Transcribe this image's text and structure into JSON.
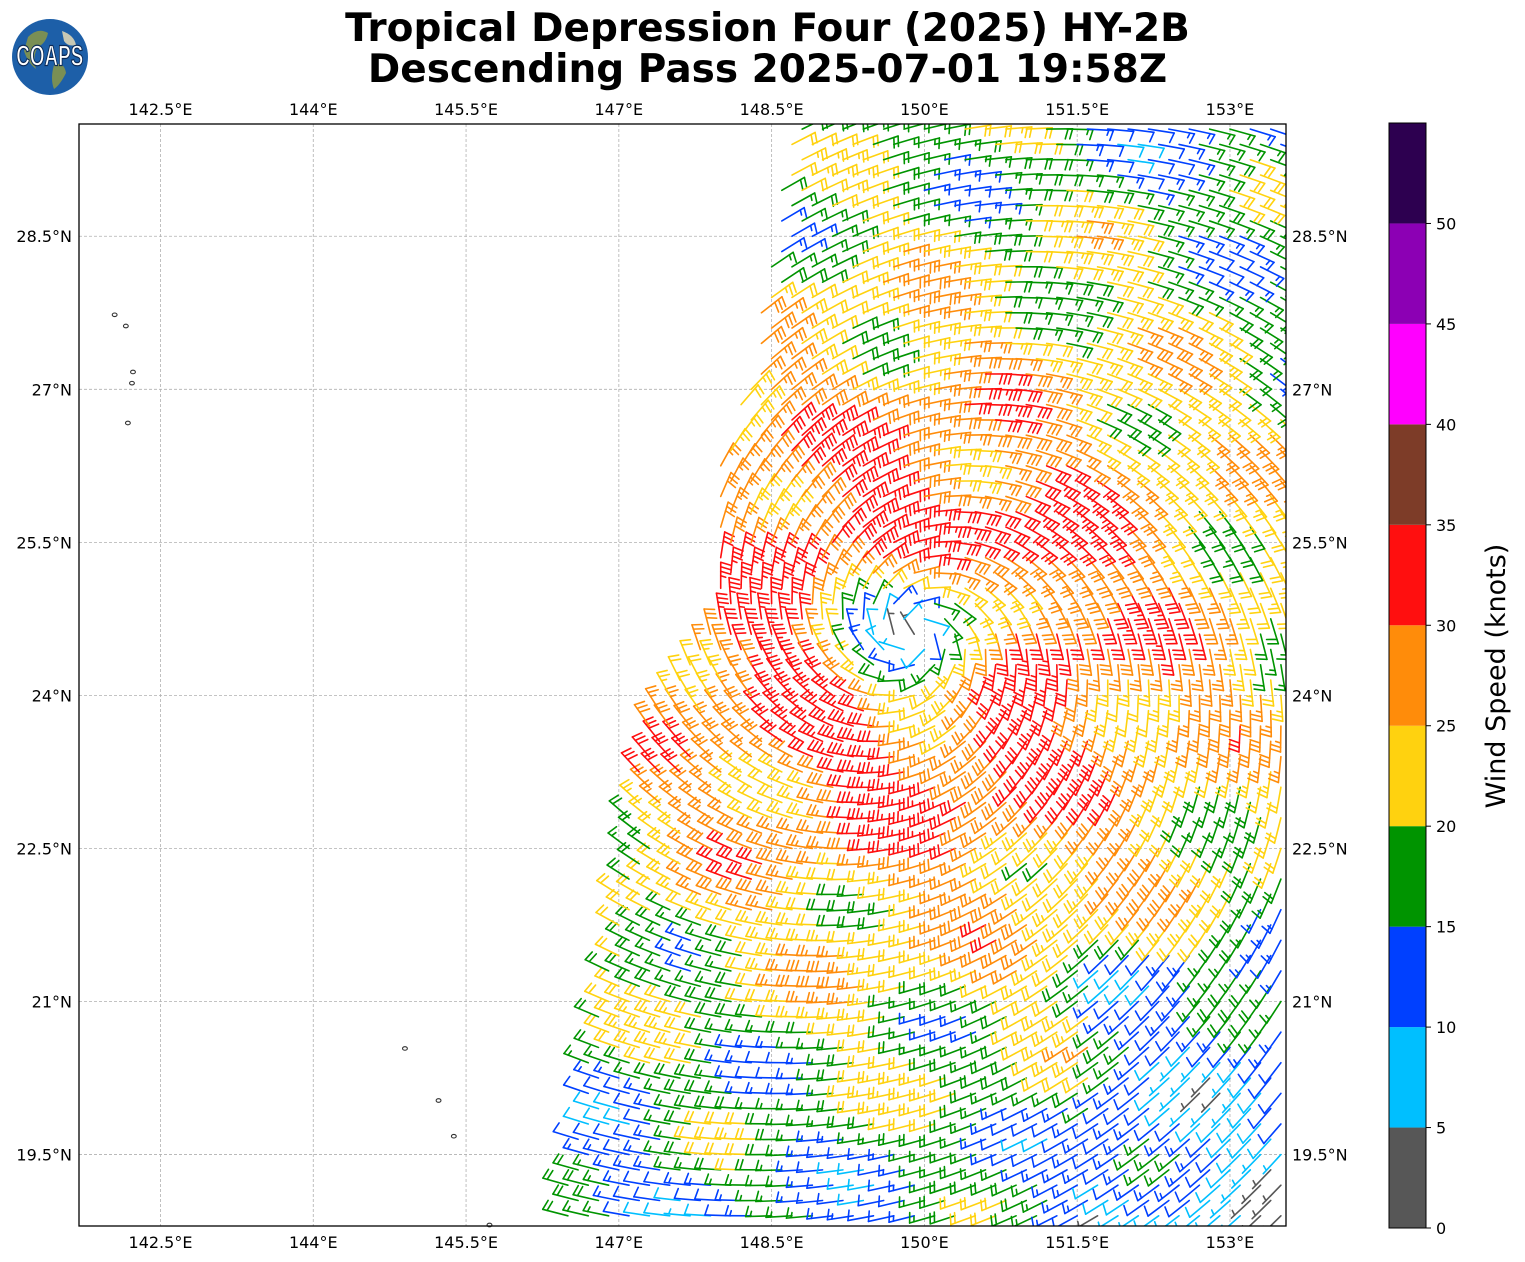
{
  "title": {
    "line1": "Tropical Depression Four (2025) HY-2B",
    "line2": "Descending Pass 2025-07-01 19:58Z"
  },
  "logo": {
    "text": "COAPS",
    "icon": "globe-logo-icon"
  },
  "map": {
    "lon_range": [
      141.7,
      153.55
    ],
    "lat_range": [
      18.8,
      29.6
    ],
    "lon_ticks": [
      {
        "value": 142.5,
        "label": "142.5°E"
      },
      {
        "value": 144.0,
        "label": "144°E"
      },
      {
        "value": 145.5,
        "label": "145.5°E"
      },
      {
        "value": 147.0,
        "label": "147°E"
      },
      {
        "value": 148.5,
        "label": "148.5°E"
      },
      {
        "value": 150.0,
        "label": "150°E"
      },
      {
        "value": 151.5,
        "label": "151.5°E"
      },
      {
        "value": 153.0,
        "label": "153°E"
      }
    ],
    "lat_ticks": [
      {
        "value": 28.5,
        "label": "28.5°N"
      },
      {
        "value": 27.0,
        "label": "27°N"
      },
      {
        "value": 25.5,
        "label": "25.5°N"
      },
      {
        "value": 24.0,
        "label": "24°N"
      },
      {
        "value": 22.5,
        "label": "22.5°N"
      },
      {
        "value": 21.0,
        "label": "21°N"
      },
      {
        "value": 19.5,
        "label": "19.5°N"
      }
    ],
    "grid": true,
    "islands": [
      {
        "lon": 142.05,
        "lat": 27.73
      },
      {
        "lon": 142.16,
        "lat": 27.62
      },
      {
        "lon": 142.23,
        "lat": 27.17
      },
      {
        "lon": 142.22,
        "lat": 27.06
      },
      {
        "lon": 142.18,
        "lat": 26.67
      },
      {
        "lon": 144.9,
        "lat": 20.54
      },
      {
        "lon": 145.23,
        "lat": 20.03
      },
      {
        "lon": 145.38,
        "lat": 19.68
      },
      {
        "lon": 145.73,
        "lat": 18.81
      }
    ]
  },
  "colorbar": {
    "label": "Wind Speed (knots)",
    "ticks": [
      "0",
      "5",
      "10",
      "15",
      "20",
      "25",
      "30",
      "35",
      "40",
      "45",
      "50"
    ],
    "bins": [
      {
        "min": 0,
        "max": 5,
        "color": "#575757"
      },
      {
        "min": 5,
        "max": 10,
        "color": "#00bfff"
      },
      {
        "min": 10,
        "max": 15,
        "color": "#0040ff"
      },
      {
        "min": 15,
        "max": 20,
        "color": "#009400"
      },
      {
        "min": 20,
        "max": 25,
        "color": "#ffd20f"
      },
      {
        "min": 25,
        "max": 30,
        "color": "#ff8c0a"
      },
      {
        "min": 30,
        "max": 35,
        "color": "#ff0f0f"
      },
      {
        "min": 35,
        "max": 40,
        "color": "#7d3c28"
      },
      {
        "min": 40,
        "max": 45,
        "color": "#ff00ff"
      },
      {
        "min": 45,
        "max": 50,
        "color": "#8c00b4"
      },
      {
        "min": 50,
        "max": 55,
        "color": "#2d0050"
      }
    ]
  },
  "wind_field": {
    "type": "barbs",
    "lon_start": 146.5,
    "lon_end": 153.55,
    "lon_step": 0.2,
    "lat_start": 18.9,
    "lat_end": 29.55,
    "lat_step": 0.15,
    "center": {
      "lon": 149.9,
      "lat": 24.6
    },
    "max_speed_knots": 33,
    "swath_edge": [
      {
        "lat": 18.8,
        "lon": 146.4
      },
      {
        "lat": 21.5,
        "lon": 146.9
      },
      {
        "lat": 23.0,
        "lon": 147.1
      },
      {
        "lat": 24.0,
        "lon": 147.3
      },
      {
        "lat": 25.0,
        "lon": 148.0
      },
      {
        "lat": 26.0,
        "lon": 147.9
      },
      {
        "lat": 27.2,
        "lon": 148.3
      },
      {
        "lat": 28.5,
        "lon": 148.5
      },
      {
        "lat": 29.6,
        "lon": 148.7
      }
    ]
  }
}
